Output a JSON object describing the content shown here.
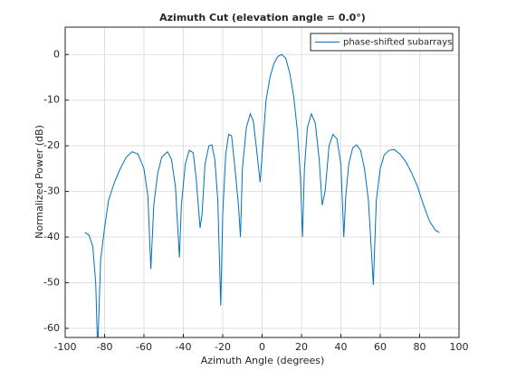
{
  "chart_data": {
    "type": "line",
    "title": "Azimuth Cut (elevation angle = 0.0°)",
    "x_label": "Azimuth Angle (degrees)",
    "y_label": "Normalized Power (dB)",
    "x": [
      -90,
      -88,
      -86,
      -84.5,
      -83.5,
      -82,
      -80,
      -78,
      -75,
      -72,
      -69,
      -66,
      -63,
      -60,
      -58,
      -56.5,
      -55,
      -53,
      -51,
      -48,
      -46,
      -44,
      -42,
      -41,
      -39,
      -37,
      -35,
      -33.5,
      -31.5,
      -30.5,
      -29,
      -27,
      -25.5,
      -24,
      -22.5,
      -21,
      -20,
      -18.5,
      -17,
      -15.5,
      -14,
      -12,
      -11,
      -10,
      -8,
      -6,
      -4.5,
      -3,
      -1,
      0,
      2,
      4,
      6,
      8,
      10,
      12,
      14,
      16,
      18,
      19.5,
      20.5,
      21.5,
      23,
      25,
      27,
      29,
      30.5,
      32,
      34,
      36,
      38,
      40,
      41.5,
      42.5,
      44,
      46,
      48,
      50,
      52,
      54,
      56.5,
      58,
      60,
      62,
      64.5,
      67,
      70,
      73,
      76,
      79,
      82,
      85,
      88,
      90
    ],
    "series": [
      {
        "name": "phase-shifted subarrays",
        "color": "#0072bd",
        "values": [
          -39,
          -39.5,
          -42,
          -50,
          -65,
          -45,
          -38,
          -32,
          -28,
          -25,
          -22.5,
          -21.3,
          -21.8,
          -25,
          -31,
          -47,
          -33,
          -26,
          -22.5,
          -21.3,
          -23,
          -29,
          -44.5,
          -33,
          -24,
          -21,
          -21.5,
          -27,
          -38,
          -35,
          -24,
          -20,
          -19.8,
          -23,
          -32,
          -55,
          -35,
          -22,
          -17.5,
          -17.8,
          -24,
          -33,
          -40,
          -25,
          -16,
          -13,
          -14.5,
          -20,
          -28,
          -22,
          -10,
          -5,
          -2,
          -0.4,
          0,
          -0.8,
          -4,
          -9,
          -17,
          -27,
          -40,
          -25,
          -16,
          -13,
          -15,
          -23,
          -33,
          -30,
          -20,
          -17.5,
          -18.5,
          -24,
          -40,
          -31,
          -24,
          -20.5,
          -19.8,
          -21,
          -25,
          -32,
          -50.5,
          -32,
          -25,
          -22,
          -21,
          -20.8,
          -21.8,
          -23.5,
          -26,
          -29,
          -33,
          -36.5,
          -38.5,
          -39
        ]
      }
    ],
    "xlim": [
      -100,
      100
    ],
    "xticks": [
      -100,
      -80,
      -60,
      -40,
      -20,
      0,
      20,
      40,
      60,
      80,
      100
    ],
    "ylim": [
      -62,
      6
    ],
    "yticks": [
      -60,
      -50,
      -40,
      -30,
      -20,
      -10,
      0
    ],
    "grid": true,
    "legend": "northeast"
  }
}
